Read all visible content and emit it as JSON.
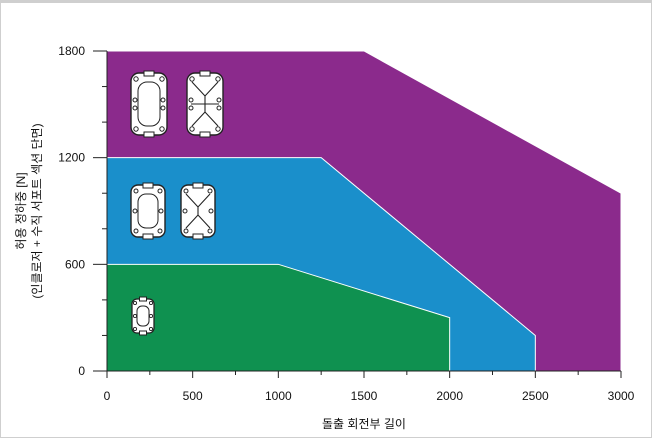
{
  "chart_data": {
    "type": "area",
    "title": "",
    "xlabel": "돌출 회전부 길이",
    "ylabel": [
      "허용 정하중 [N]",
      "(인클로저 + 수직 서포트 섹션 단면)"
    ],
    "xlim": [
      0,
      3000
    ],
    "ylim": [
      0,
      1800
    ],
    "x_ticks": [
      0,
      500,
      1000,
      1500,
      2000,
      2500,
      3000
    ],
    "y_ticks": [
      0,
      600,
      1200,
      1800
    ],
    "grid": false,
    "series": [
      {
        "color": "#8b2a8c",
        "points": [
          [
            0,
            0
          ],
          [
            0,
            1800
          ],
          [
            1500,
            1800
          ],
          [
            3000,
            1000
          ],
          [
            3000,
            0
          ]
        ]
      },
      {
        "color": "#1a8fcb",
        "points": [
          [
            0,
            0
          ],
          [
            0,
            1200
          ],
          [
            1250,
            1200
          ],
          [
            2500,
            200
          ],
          [
            2500,
            0
          ]
        ]
      },
      {
        "color": "#0f9150",
        "points": [
          [
            0,
            0
          ],
          [
            0,
            600
          ],
          [
            1000,
            600
          ],
          [
            2000,
            300
          ],
          [
            2000,
            0
          ]
        ]
      }
    ],
    "icons": [
      "large-section-profile-icon",
      "large-section-profile-braced-icon",
      "medium-section-profile-icon",
      "medium-section-profile-braced-icon",
      "small-section-profile-icon"
    ]
  }
}
